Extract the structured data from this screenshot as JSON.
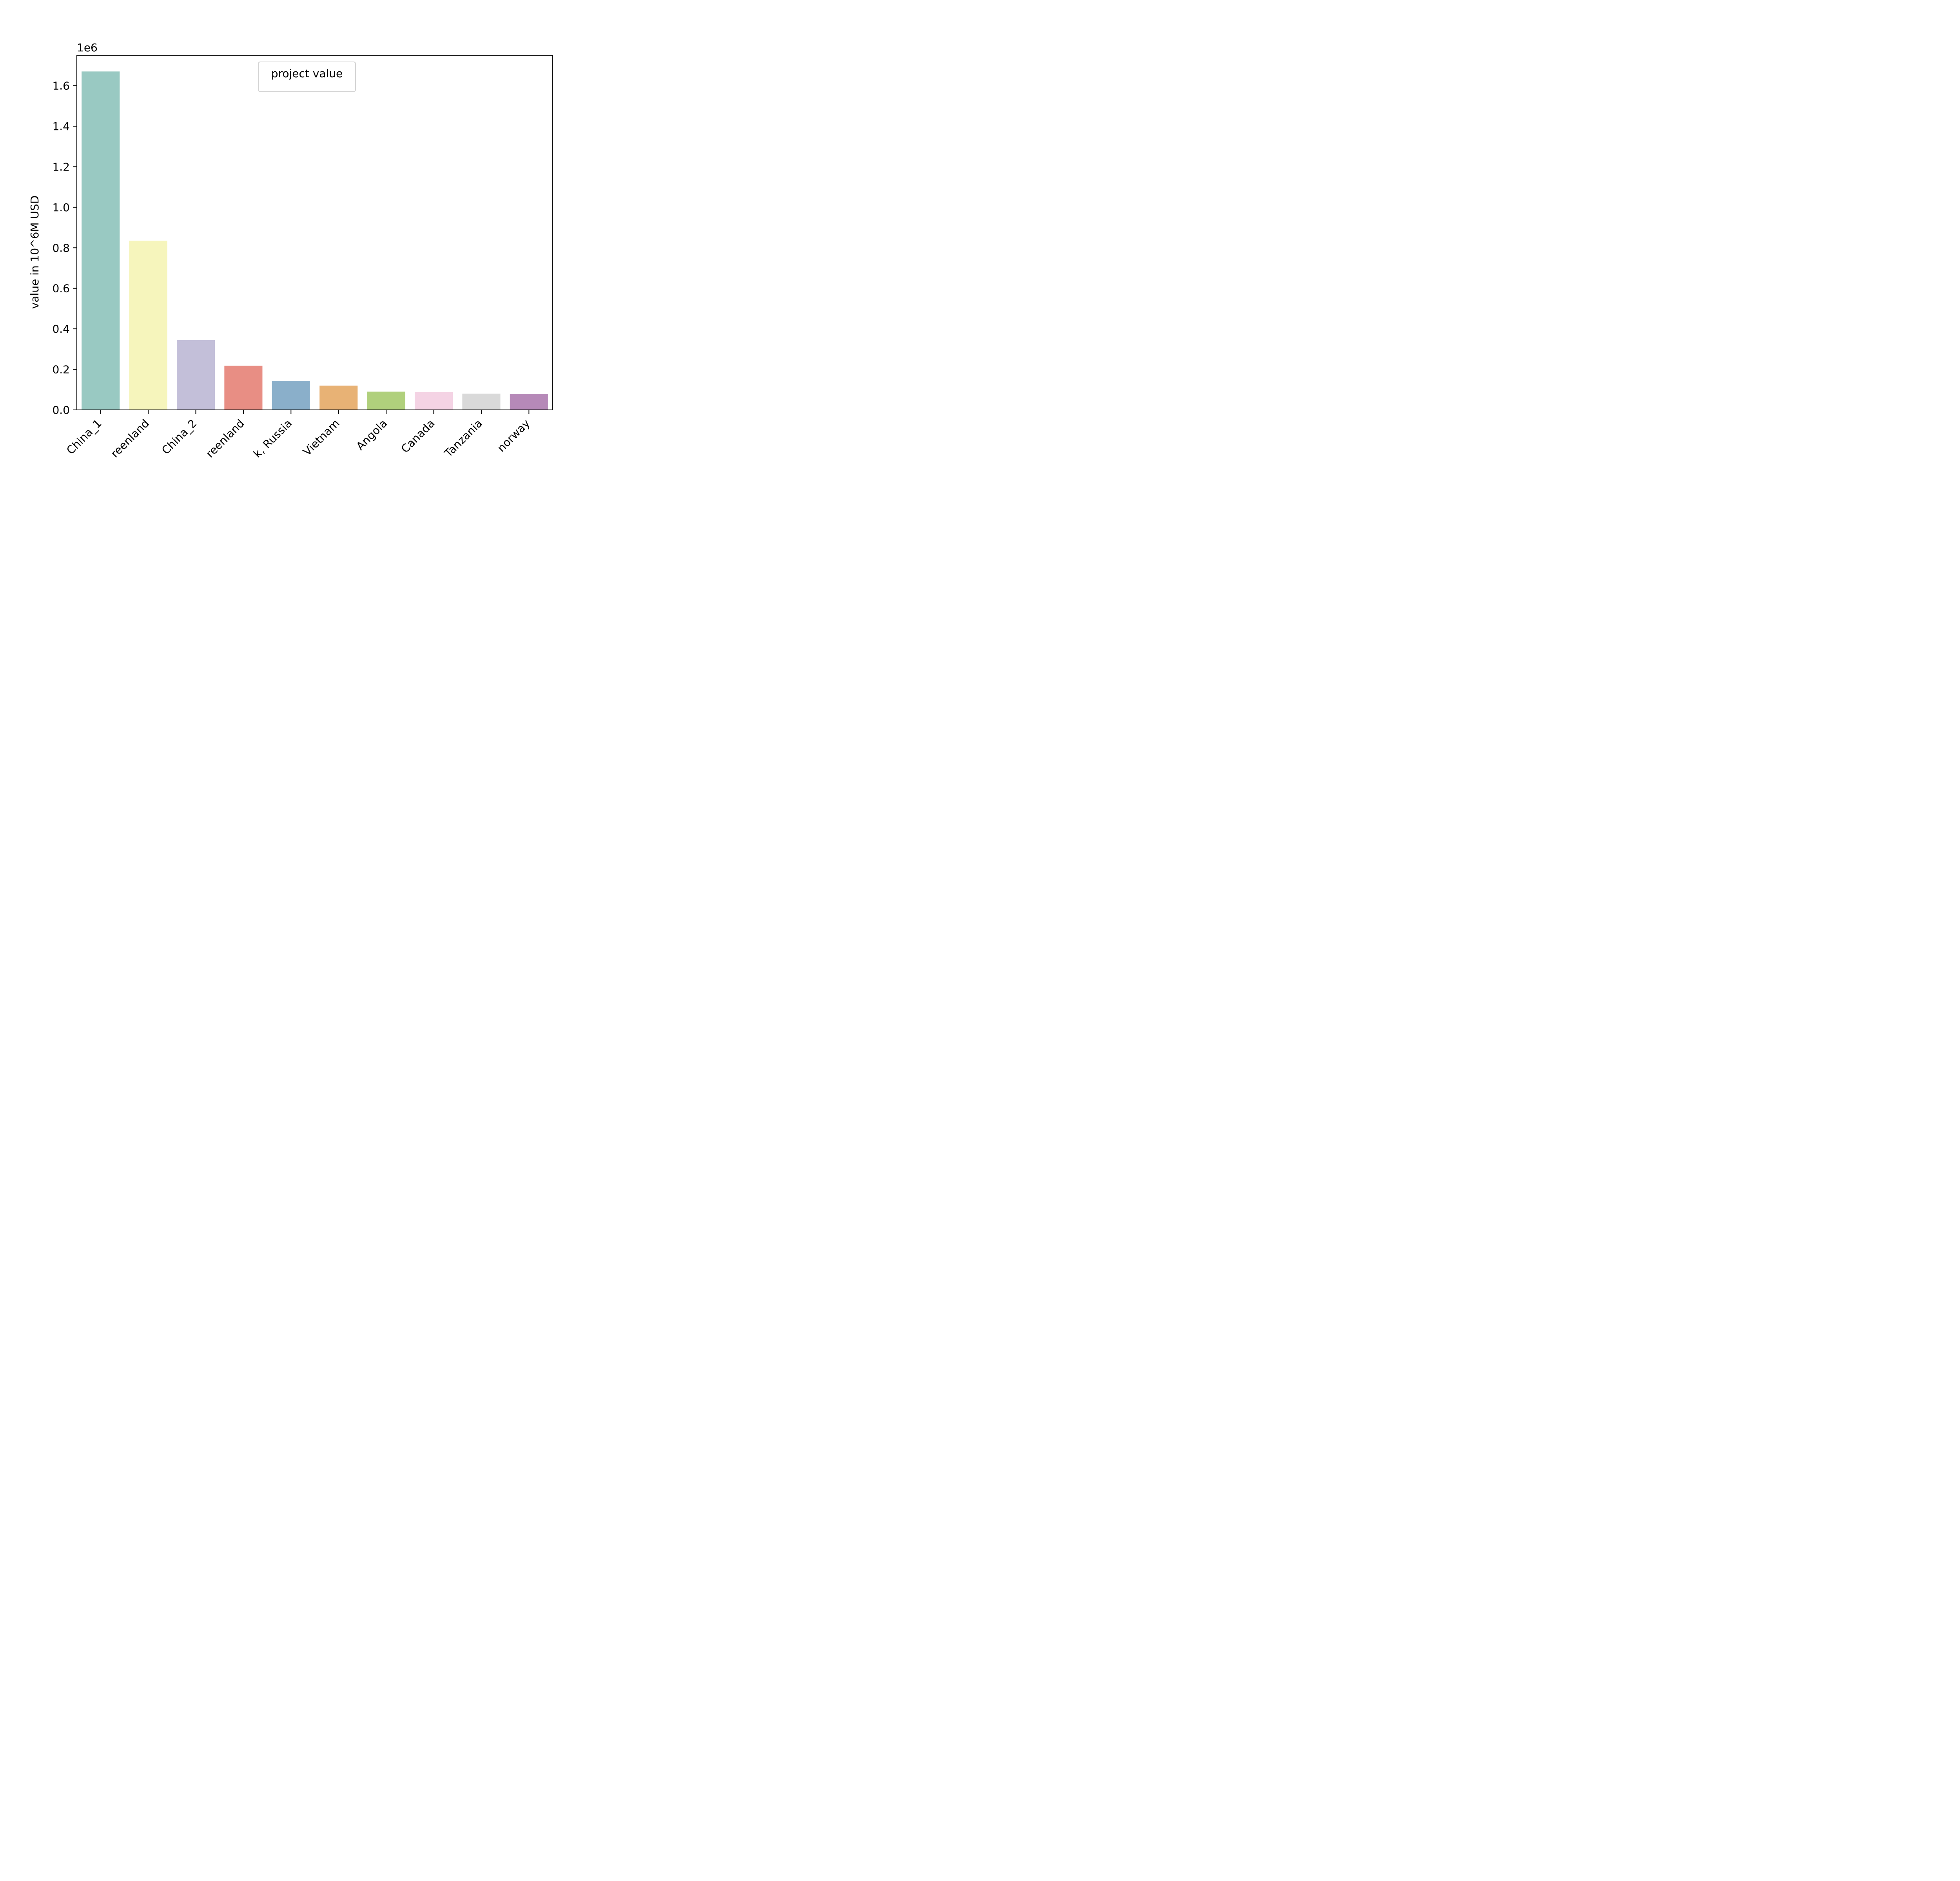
{
  "chart_data": {
    "type": "bar",
    "categories": [
      "China_1",
      "Greenland",
      "China_2",
      "Greenland",
      "Russia",
      "Vietnam",
      "Angola",
      "Canada",
      "Tanzania",
      "norway"
    ],
    "tick_labels_visible": [
      "China_1",
      "reenland",
      "China_2",
      "reenland",
      "k, Russia",
      "Vietnam",
      "Angola",
      "Canada",
      "Tanzania",
      "norway"
    ],
    "values": [
      1670000,
      835000,
      345000,
      218000,
      142000,
      120000,
      90000,
      88000,
      80000,
      79000
    ],
    "colors": [
      "#99c9c2",
      "#f6f5bc",
      "#c3bfd9",
      "#e88e84",
      "#8aafca",
      "#e8b275",
      "#b0d07c",
      "#f4d3e4",
      "#d9d9d9",
      "#b689b8"
    ],
    "ylabel": "value in 10^6M USD",
    "offset_label": "1e6",
    "ylim": [
      0,
      1750000
    ],
    "yticks": [
      0,
      200000,
      400000,
      600000,
      800000,
      1000000,
      1200000,
      1400000,
      1600000
    ],
    "ytick_labels": [
      "0.0",
      "0.2",
      "0.4",
      "0.6",
      "0.8",
      "1.0",
      "1.2",
      "1.4",
      "1.6"
    ],
    "legend": {
      "label": "project value",
      "placement": "upper center"
    },
    "grid": false
  }
}
